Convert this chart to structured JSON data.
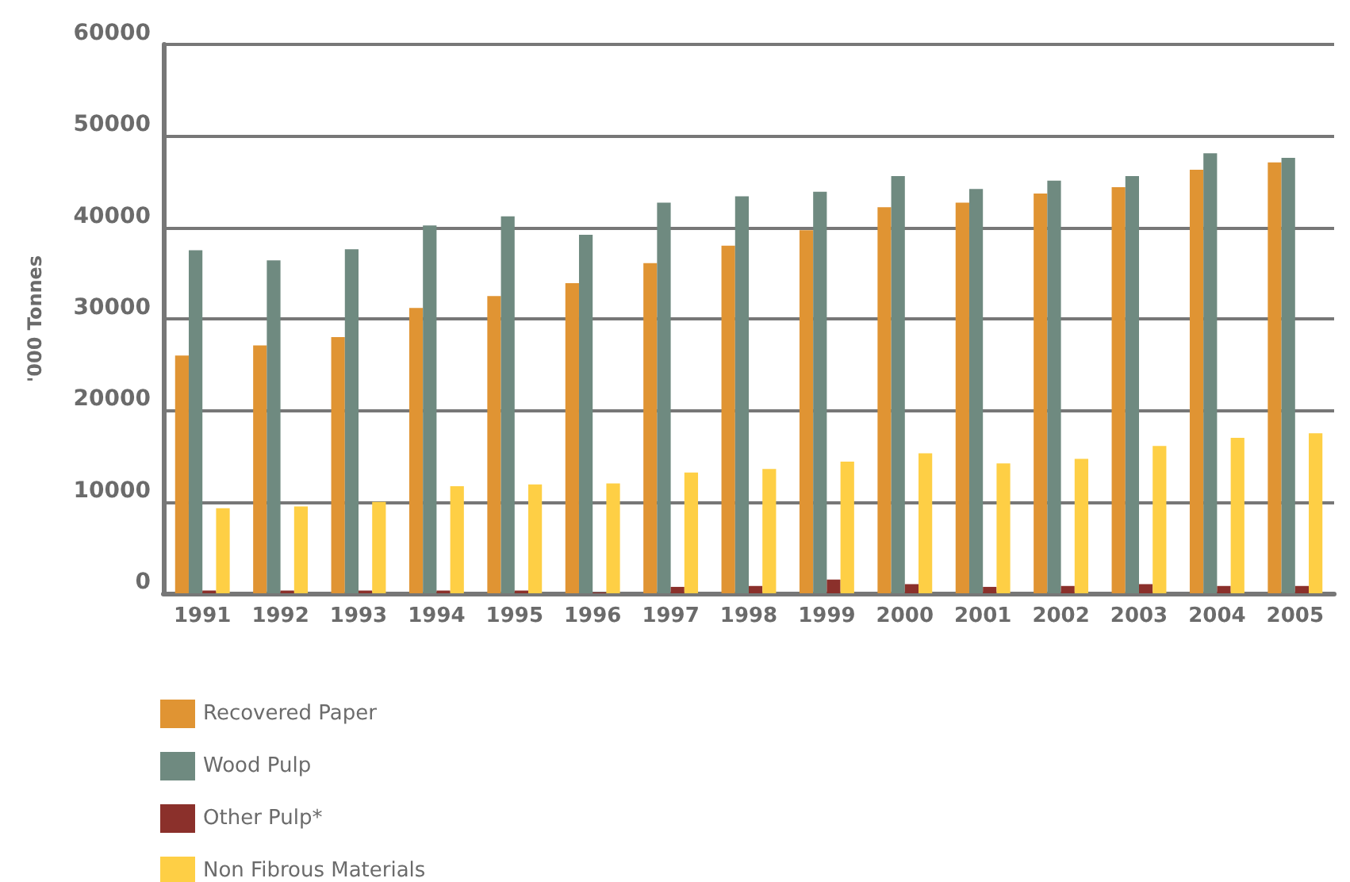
{
  "chart_data": {
    "type": "bar",
    "ylabel": "'000 Tonnes",
    "categories": [
      "1991",
      "1992",
      "1993",
      "1994",
      "1995",
      "1996",
      "1997",
      "1998",
      "1999",
      "2000",
      "2001",
      "2002",
      "2003",
      "2004",
      "2005"
    ],
    "series": [
      {
        "name": "Recovered Paper",
        "color": "#e09433",
        "values": [
          26000,
          27100,
          28000,
          31200,
          32500,
          33900,
          36100,
          38000,
          39700,
          42200,
          42700,
          43700,
          44400,
          46300,
          47100
        ]
      },
      {
        "name": "Wood Pulp",
        "color": "#6f8a80",
        "values": [
          37500,
          36400,
          37600,
          40200,
          41200,
          39200,
          42700,
          43400,
          43900,
          45600,
          44200,
          45100,
          45600,
          48100,
          47600
        ]
      },
      {
        "name": "Other Pulp*",
        "color": "#8b302b",
        "values": [
          300,
          300,
          300,
          300,
          300,
          100,
          700,
          800,
          1500,
          1000,
          700,
          800,
          1000,
          800,
          800
        ]
      },
      {
        "name": "Non Fibrous Materials",
        "color": "#fecf45",
        "values": [
          9300,
          9500,
          10000,
          11700,
          11900,
          12000,
          13200,
          13600,
          14400,
          15300,
          14200,
          14700,
          16100,
          17000,
          17500
        ]
      }
    ],
    "ylim": [
      0,
      60000
    ],
    "yticks": [
      0,
      10000,
      20000,
      30000,
      40000,
      50000,
      60000
    ],
    "grid": "y",
    "legend": "bottom left"
  }
}
